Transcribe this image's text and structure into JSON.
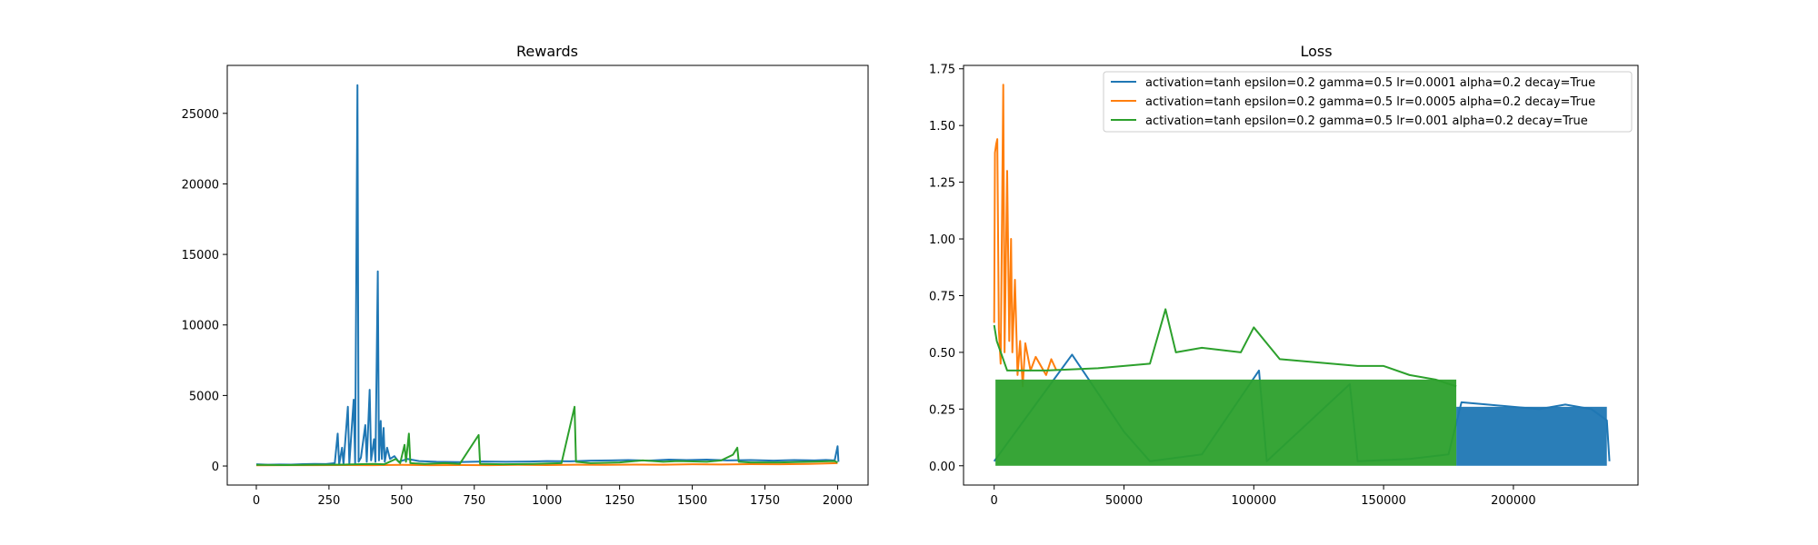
{
  "figure": {
    "background": "#ffffff"
  },
  "chart_data": [
    {
      "type": "line",
      "title": "Rewards",
      "xlabel": "",
      "ylabel": "",
      "xlim": [
        -100,
        2105
      ],
      "ylim": [
        -1350,
        28400
      ],
      "xticks": [
        0,
        250,
        500,
        750,
        1000,
        1250,
        1500,
        1750,
        2000
      ],
      "yticks": [
        0,
        5000,
        10000,
        15000,
        20000,
        25000
      ],
      "grid": false,
      "legend": null,
      "series": [
        {
          "color": "#1f77b4",
          "points": [
            [
              0,
              120
            ],
            [
              40,
              90
            ],
            [
              80,
              110
            ],
            [
              120,
              100
            ],
            [
              160,
              130
            ],
            [
              200,
              150
            ],
            [
              240,
              140
            ],
            [
              270,
              200
            ],
            [
              280,
              2300
            ],
            [
              285,
              100
            ],
            [
              295,
              1300
            ],
            [
              300,
              120
            ],
            [
              315,
              4200
            ],
            [
              320,
              150
            ],
            [
              335,
              4700
            ],
            [
              340,
              200
            ],
            [
              348,
              27000
            ],
            [
              352,
              300
            ],
            [
              360,
              600
            ],
            [
              375,
              2900
            ],
            [
              380,
              300
            ],
            [
              390,
              5400
            ],
            [
              395,
              400
            ],
            [
              405,
              1900
            ],
            [
              410,
              300
            ],
            [
              418,
              13800
            ],
            [
              422,
              400
            ],
            [
              428,
              3200
            ],
            [
              432,
              500
            ],
            [
              438,
              2700
            ],
            [
              442,
              300
            ],
            [
              450,
              1300
            ],
            [
              460,
              500
            ],
            [
              475,
              700
            ],
            [
              490,
              300
            ],
            [
              520,
              500
            ],
            [
              560,
              350
            ],
            [
              620,
              300
            ],
            [
              700,
              280
            ],
            [
              780,
              320
            ],
            [
              860,
              300
            ],
            [
              940,
              320
            ],
            [
              1000,
              350
            ],
            [
              1080,
              330
            ],
            [
              1150,
              380
            ],
            [
              1220,
              400
            ],
            [
              1280,
              420
            ],
            [
              1350,
              380
            ],
            [
              1420,
              450
            ],
            [
              1480,
              420
            ],
            [
              1550,
              450
            ],
            [
              1620,
              400
            ],
            [
              1700,
              420
            ],
            [
              1780,
              380
            ],
            [
              1850,
              420
            ],
            [
              1920,
              400
            ],
            [
              1960,
              430
            ],
            [
              1990,
              400
            ],
            [
              2000,
              1400
            ],
            [
              2003,
              300
            ]
          ]
        },
        {
          "color": "#ff7f0e",
          "points": [
            [
              0,
              50
            ],
            [
              100,
              60
            ],
            [
              200,
              55
            ],
            [
              300,
              70
            ],
            [
              400,
              60
            ],
            [
              500,
              80
            ],
            [
              600,
              60
            ],
            [
              700,
              70
            ],
            [
              800,
              60
            ],
            [
              900,
              80
            ],
            [
              1000,
              70
            ],
            [
              1100,
              90
            ],
            [
              1200,
              80
            ],
            [
              1300,
              100
            ],
            [
              1400,
              90
            ],
            [
              1500,
              120
            ],
            [
              1600,
              110
            ],
            [
              1700,
              130
            ],
            [
              1800,
              120
            ],
            [
              1900,
              150
            ],
            [
              2000,
              200
            ]
          ]
        },
        {
          "color": "#2ca02c",
          "points": [
            [
              0,
              80
            ],
            [
              100,
              70
            ],
            [
              200,
              90
            ],
            [
              300,
              100
            ],
            [
              400,
              150
            ],
            [
              440,
              120
            ],
            [
              480,
              500
            ],
            [
              495,
              200
            ],
            [
              510,
              1500
            ],
            [
              515,
              300
            ],
            [
              525,
              2300
            ],
            [
              530,
              200
            ],
            [
              580,
              150
            ],
            [
              650,
              200
            ],
            [
              700,
              150
            ],
            [
              765,
              2200
            ],
            [
              770,
              150
            ],
            [
              850,
              120
            ],
            [
              950,
              150
            ],
            [
              1050,
              200
            ],
            [
              1095,
              4200
            ],
            [
              1100,
              300
            ],
            [
              1150,
              200
            ],
            [
              1250,
              250
            ],
            [
              1330,
              400
            ],
            [
              1400,
              300
            ],
            [
              1450,
              350
            ],
            [
              1550,
              300
            ],
            [
              1600,
              400
            ],
            [
              1640,
              800
            ],
            [
              1655,
              1300
            ],
            [
              1660,
              300
            ],
            [
              1700,
              250
            ],
            [
              1800,
              250
            ],
            [
              1900,
              300
            ],
            [
              1990,
              350
            ],
            [
              2000,
              250
            ]
          ]
        }
      ]
    },
    {
      "type": "line",
      "title": "Loss",
      "xlabel": "",
      "ylabel": "",
      "xlim": [
        -11800,
        248000
      ],
      "ylim": [
        -0.085,
        1.765
      ],
      "xticks": [
        0,
        50000,
        100000,
        150000,
        200000
      ],
      "yticks": [
        0.0,
        0.25,
        0.5,
        0.75,
        1.0,
        1.25,
        1.5,
        1.75
      ],
      "ytick_labels": [
        "0.00",
        "0.25",
        "0.50",
        "0.75",
        "1.00",
        "1.25",
        "1.50",
        "1.75"
      ],
      "grid": false,
      "legend": "top-right",
      "series": [
        {
          "name": "activation=tanh epsilon=0.2 gamma=0.5 lr=0.0001 alpha=0.2 decay=True",
          "color": "#1f77b4",
          "points": [
            [
              0,
              0.02
            ],
            [
              30000,
              0.49
            ],
            [
              50000,
              0.15
            ],
            [
              60000,
              0.02
            ],
            [
              80000,
              0.05
            ],
            [
              102000,
              0.42
            ],
            [
              105000,
              0.02
            ],
            [
              137000,
              0.36
            ],
            [
              140000,
              0.02
            ],
            [
              160000,
              0.03
            ],
            [
              175000,
              0.05
            ],
            [
              180000,
              0.28
            ],
            [
              190000,
              0.27
            ],
            [
              200000,
              0.26
            ],
            [
              210000,
              0.25
            ],
            [
              220000,
              0.27
            ],
            [
              230000,
              0.25
            ],
            [
              236000,
              0.2
            ],
            [
              237000,
              0.02
            ]
          ],
          "band": {
            "x_from": 178000,
            "x_to": 236000,
            "low": 0.0,
            "high": 0.26
          }
        },
        {
          "name": "activation=tanh epsilon=0.2 gamma=0.5 lr=0.0005 alpha=0.2 decay=True",
          "color": "#ff7f0e",
          "points": [
            [
              0,
              0.63
            ],
            [
              300,
              1.38
            ],
            [
              800,
              1.42
            ],
            [
              1200,
              1.44
            ],
            [
              1800,
              0.6
            ],
            [
              2500,
              0.45
            ],
            [
              3500,
              1.68
            ],
            [
              4000,
              0.5
            ],
            [
              5000,
              1.3
            ],
            [
              5800,
              0.55
            ],
            [
              6500,
              1.0
            ],
            [
              7000,
              0.5
            ],
            [
              8000,
              0.82
            ],
            [
              9000,
              0.4
            ],
            [
              10000,
              0.55
            ],
            [
              11000,
              0.35
            ],
            [
              12000,
              0.54
            ],
            [
              14000,
              0.42
            ],
            [
              16000,
              0.48
            ],
            [
              20000,
              0.4
            ],
            [
              22000,
              0.47
            ],
            [
              24000,
              0.42
            ]
          ]
        },
        {
          "name": "activation=tanh epsilon=0.2 gamma=0.5 lr=0.001 alpha=0.2 decay=True",
          "color": "#2ca02c",
          "points": [
            [
              0,
              0.62
            ],
            [
              1000,
              0.55
            ],
            [
              5000,
              0.42
            ],
            [
              20000,
              0.42
            ],
            [
              40000,
              0.43
            ],
            [
              60000,
              0.45
            ],
            [
              66000,
              0.69
            ],
            [
              70000,
              0.5
            ],
            [
              80000,
              0.52
            ],
            [
              95000,
              0.5
            ],
            [
              100000,
              0.61
            ],
            [
              110000,
              0.47
            ],
            [
              120000,
              0.46
            ],
            [
              130000,
              0.45
            ],
            [
              140000,
              0.44
            ],
            [
              150000,
              0.44
            ],
            [
              160000,
              0.4
            ],
            [
              170000,
              0.38
            ],
            [
              178000,
              0.35
            ]
          ],
          "band": {
            "x_from": 500,
            "x_to": 178000,
            "low": 0.0,
            "high": 0.38
          }
        }
      ]
    }
  ]
}
